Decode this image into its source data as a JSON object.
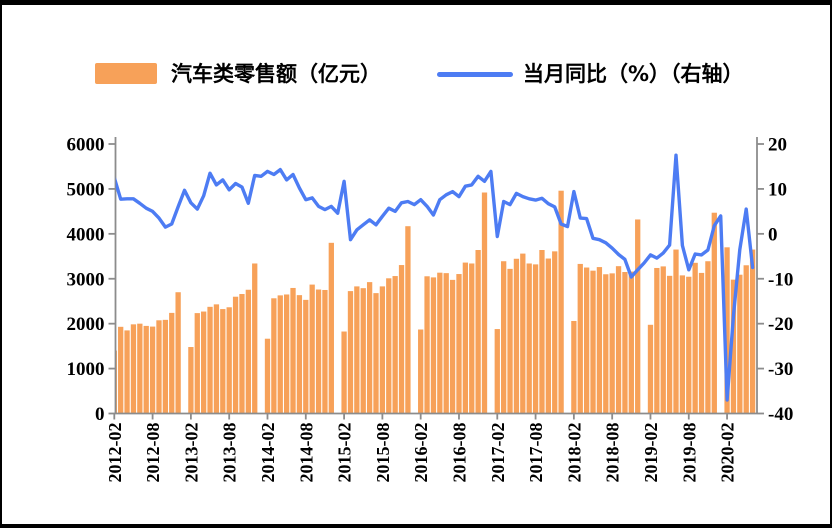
{
  "legend": {
    "bar_label": "汽车类零售额（亿元）",
    "line_label": "当月同比（%）（右轴）"
  },
  "colors": {
    "bar": "#F7A159",
    "line": "#4D7CF3",
    "axis": "#8C8C8C",
    "frame": "#000000",
    "background": "#FFFFFF"
  },
  "chart_data": {
    "type": "bar",
    "title": "",
    "xlabel": "",
    "ylabel_left": "亿元",
    "ylabel_right": "%",
    "grid": false,
    "legend_position": "top",
    "months": [
      "2012-02",
      "2012-03",
      "2012-04",
      "2012-05",
      "2012-06",
      "2012-07",
      "2012-08",
      "2012-09",
      "2012-10",
      "2012-11",
      "2012-12",
      "2013-01",
      "2013-02",
      "2013-03",
      "2013-04",
      "2013-05",
      "2013-06",
      "2013-07",
      "2013-08",
      "2013-09",
      "2013-10",
      "2013-11",
      "2013-12",
      "2014-01",
      "2014-02",
      "2014-03",
      "2014-04",
      "2014-05",
      "2014-06",
      "2014-07",
      "2014-08",
      "2014-09",
      "2014-10",
      "2014-11",
      "2014-12",
      "2015-01",
      "2015-02",
      "2015-03",
      "2015-04",
      "2015-05",
      "2015-06",
      "2015-07",
      "2015-08",
      "2015-09",
      "2015-10",
      "2015-11",
      "2015-12",
      "2016-01",
      "2016-02",
      "2016-03",
      "2016-04",
      "2016-05",
      "2016-06",
      "2016-07",
      "2016-08",
      "2016-09",
      "2016-10",
      "2016-11",
      "2016-12",
      "2017-01",
      "2017-02",
      "2017-03",
      "2017-04",
      "2017-05",
      "2017-06",
      "2017-07",
      "2017-08",
      "2017-09",
      "2017-10",
      "2017-11",
      "2017-12",
      "2018-01",
      "2018-02",
      "2018-03",
      "2018-04",
      "2018-05",
      "2018-06",
      "2018-07",
      "2018-08",
      "2018-09",
      "2018-10",
      "2018-11",
      "2018-12",
      "2019-01",
      "2019-02",
      "2019-03",
      "2019-04",
      "2019-05",
      "2019-06",
      "2019-07",
      "2019-08",
      "2019-09",
      "2019-10",
      "2019-11",
      "2019-12",
      "2020-01",
      "2020-02",
      "2020-03",
      "2020-04",
      "2020-05",
      "2020-06"
    ],
    "series": [
      {
        "name": "汽车类零售额（亿元）",
        "type": "bar",
        "axis": "left",
        "values": [
          1400,
          1930,
          1850,
          1985,
          2000,
          1950,
          1935,
          2075,
          2085,
          2240,
          2700,
          null,
          1480,
          2235,
          2270,
          2375,
          2430,
          2325,
          2365,
          2600,
          2660,
          2755,
          3340,
          null,
          1665,
          2565,
          2630,
          2650,
          2795,
          2635,
          2530,
          2870,
          2760,
          2750,
          3800,
          null,
          1825,
          2725,
          2830,
          2790,
          2925,
          2680,
          2830,
          3010,
          3060,
          3305,
          4170,
          null,
          1870,
          3055,
          3030,
          3135,
          3125,
          2975,
          3105,
          3360,
          3340,
          3640,
          4920,
          null,
          1880,
          3390,
          3220,
          3445,
          3560,
          3340,
          3320,
          3640,
          3450,
          3610,
          4960,
          null,
          2060,
          3330,
          3250,
          3180,
          3260,
          3100,
          3120,
          3280,
          3150,
          3160,
          4320,
          null,
          1975,
          3240,
          3275,
          3065,
          3650,
          3075,
          3045,
          3355,
          3130,
          3390,
          4470,
          null,
          3700,
          2980,
          3090,
          3300,
          3650
        ]
      },
      {
        "name": "当月同比（%）",
        "type": "line",
        "axis": "right",
        "values": [
          12.5,
          7.7,
          7.8,
          7.8,
          6.8,
          5.7,
          5.0,
          3.5,
          1.5,
          2.2,
          6.0,
          9.7,
          6.9,
          5.5,
          8.5,
          13.5,
          10.9,
          12.0,
          9.8,
          11.2,
          10.4,
          6.8,
          13.0,
          12.8,
          13.9,
          13.2,
          14.3,
          12.0,
          13.2,
          10.2,
          7.6,
          8.0,
          6.1,
          5.4,
          6.1,
          4.6,
          11.7,
          -1.3,
          0.9,
          2.0,
          3.1,
          2.0,
          3.9,
          5.7,
          5.0,
          6.9,
          7.2,
          6.5,
          7.6,
          6.1,
          4.2,
          7.6,
          8.7,
          9.4,
          8.3,
          10.6,
          10.9,
          12.8,
          11.7,
          13.9,
          -0.6,
          7.2,
          6.5,
          9.0,
          8.3,
          7.8,
          7.5,
          7.9,
          6.7,
          6.0,
          2.2,
          1.6,
          9.4,
          3.5,
          3.4,
          -1.0,
          -1.3,
          -2.0,
          -3.2,
          -4.6,
          -5.7,
          -9.6,
          -8.0,
          -6.5,
          -4.7,
          -5.4,
          -4.3,
          -2.5,
          17.5,
          -2.6,
          -8.0,
          -4.5,
          -4.7,
          -3.6,
          1.8,
          4.0,
          -37.0,
          -18.1,
          -3.5,
          5.5,
          -7.5
        ]
      }
    ],
    "left_axis": {
      "min": 0,
      "max": 6000,
      "ticks": [
        0,
        1000,
        2000,
        3000,
        4000,
        5000,
        6000
      ]
    },
    "right_axis": {
      "min": -40,
      "max": 20,
      "ticks": [
        20,
        10,
        0,
        -10,
        -20,
        -30,
        -40
      ]
    },
    "x_tick_every": 6,
    "x_tick_labels": [
      "2012-02",
      "2012-08",
      "2013-02",
      "2013-08",
      "2014-02",
      "2014-08",
      "2015-02",
      "2015-08",
      "2016-02",
      "2016-08",
      "2017-02",
      "2017-08",
      "2018-02",
      "2018-08",
      "2019-02",
      "2019-08",
      "2020-02"
    ]
  }
}
